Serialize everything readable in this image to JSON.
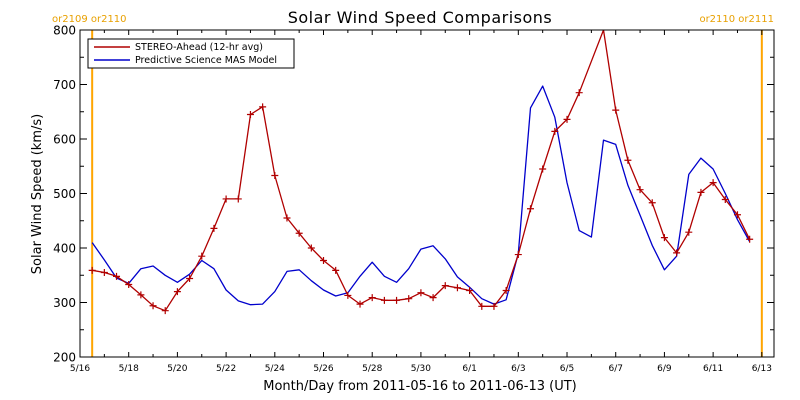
{
  "chart_data": {
    "type": "line",
    "title": "Solar Wind Speed Comparisons",
    "xlabel": "Month/Day from 2011-05-16 to 2011-06-13 (UT)",
    "ylabel": "Solar Wind Speed (km/s)",
    "ylim": [
      200,
      800
    ],
    "xlim": [
      "2011-05-16",
      "2011-06-13 12:00"
    ],
    "grid": false,
    "legend_position": "top-left",
    "x_tick_labels": [
      "5/16",
      "5/18",
      "5/20",
      "5/22",
      "5/24",
      "5/26",
      "5/28",
      "5/30",
      "6/1",
      "6/3",
      "6/5",
      "6/7",
      "6/9",
      "6/11",
      "6/13"
    ],
    "y_tick_labels": [
      "200",
      "300",
      "400",
      "500",
      "600",
      "700",
      "800"
    ],
    "annotations": {
      "left_top": "or2109 or2110",
      "right_top": "or2110 or2111"
    },
    "annotation_color": "#ffa500",
    "vertical_markers": [
      "2011-05-16 12:00",
      "2011-06-13"
    ],
    "series": [
      {
        "name": "STEREO-Ahead (12-hr avg)",
        "color": "#b00000",
        "marker": "+",
        "points": [
          [
            "2011-05-16 12:00",
            359
          ],
          [
            "2011-05-17 00:00",
            355
          ],
          [
            "2011-05-17 12:00",
            348
          ],
          [
            "2011-05-18 00:00",
            333
          ],
          [
            "2011-05-18 12:00",
            314
          ],
          [
            "2011-05-19 00:00",
            294
          ],
          [
            "2011-05-19 12:00",
            285
          ],
          [
            "2011-05-20 00:00",
            320
          ],
          [
            "2011-05-20 12:00",
            344
          ],
          [
            "2011-05-21 00:00",
            385
          ],
          [
            "2011-05-21 12:00",
            436
          ],
          [
            "2011-05-22 00:00",
            490
          ],
          [
            "2011-05-22 12:00",
            490
          ],
          [
            "2011-05-23 00:00",
            645
          ],
          [
            "2011-05-23 12:00",
            659
          ],
          [
            "2011-05-24 00:00",
            533
          ],
          [
            "2011-05-24 12:00",
            455
          ],
          [
            "2011-05-25 00:00",
            427
          ],
          [
            "2011-05-25 12:00",
            400
          ],
          [
            "2011-05-26 00:00",
            377
          ],
          [
            "2011-05-26 12:00",
            359
          ],
          [
            "2011-05-27 00:00",
            313
          ],
          [
            "2011-05-27 12:00",
            297
          ],
          [
            "2011-05-28 00:00",
            309
          ],
          [
            "2011-05-28 12:00",
            304
          ],
          [
            "2011-05-29 00:00",
            304
          ],
          [
            "2011-05-29 12:00",
            307
          ],
          [
            "2011-05-30 00:00",
            318
          ],
          [
            "2011-05-30 12:00",
            309
          ],
          [
            "2011-05-31 00:00",
            331
          ],
          [
            "2011-05-31 12:00",
            327
          ],
          [
            "2011-06-01 00:00",
            322
          ],
          [
            "2011-06-01 12:00",
            293
          ],
          [
            "2011-06-02 00:00",
            293
          ],
          [
            "2011-06-02 12:00",
            322
          ],
          [
            "2011-06-03 00:00",
            388
          ],
          [
            "2011-06-03 12:00",
            472
          ],
          [
            "2011-06-04 00:00",
            545
          ],
          [
            "2011-06-04 12:00",
            614
          ],
          [
            "2011-06-05 00:00",
            636
          ],
          [
            "2011-06-05 12:00",
            685
          ],
          [
            "2011-06-06 12:00",
            800
          ],
          [
            "2011-06-07 00:00",
            653
          ],
          [
            "2011-06-07 12:00",
            561
          ],
          [
            "2011-06-08 00:00",
            507
          ],
          [
            "2011-06-08 12:00",
            483
          ],
          [
            "2011-06-09 00:00",
            419
          ],
          [
            "2011-06-09 12:00",
            391
          ],
          [
            "2011-06-10 00:00",
            429
          ],
          [
            "2011-06-10 12:00",
            502
          ],
          [
            "2011-06-11 00:00",
            520
          ],
          [
            "2011-06-11 12:00",
            489
          ],
          [
            "2011-06-12 00:00",
            461
          ],
          [
            "2011-06-12 12:00",
            416
          ]
        ]
      },
      {
        "name": "Predictive Science MAS Model",
        "color": "#0000cc",
        "marker": "none",
        "points": [
          [
            "2011-05-16 12:00",
            410
          ],
          [
            "2011-05-17 00:00",
            378
          ],
          [
            "2011-05-17 12:00",
            345
          ],
          [
            "2011-05-18 00:00",
            335
          ],
          [
            "2011-05-18 12:00",
            362
          ],
          [
            "2011-05-19 00:00",
            367
          ],
          [
            "2011-05-19 12:00",
            350
          ],
          [
            "2011-05-20 00:00",
            337
          ],
          [
            "2011-05-20 12:00",
            352
          ],
          [
            "2011-05-21 00:00",
            377
          ],
          [
            "2011-05-21 12:00",
            362
          ],
          [
            "2011-05-22 00:00",
            323
          ],
          [
            "2011-05-22 12:00",
            303
          ],
          [
            "2011-05-23 00:00",
            296
          ],
          [
            "2011-05-23 12:00",
            297
          ],
          [
            "2011-05-24 00:00",
            320
          ],
          [
            "2011-05-24 12:00",
            357
          ],
          [
            "2011-05-25 00:00",
            360
          ],
          [
            "2011-05-25 12:00",
            340
          ],
          [
            "2011-05-26 00:00",
            323
          ],
          [
            "2011-05-26 12:00",
            312
          ],
          [
            "2011-05-27 00:00",
            318
          ],
          [
            "2011-05-27 12:00",
            348
          ],
          [
            "2011-05-28 00:00",
            374
          ],
          [
            "2011-05-28 12:00",
            348
          ],
          [
            "2011-05-29 00:00",
            337
          ],
          [
            "2011-05-29 12:00",
            362
          ],
          [
            "2011-05-30 00:00",
            398
          ],
          [
            "2011-05-30 12:00",
            404
          ],
          [
            "2011-05-31 00:00",
            380
          ],
          [
            "2011-05-31 12:00",
            347
          ],
          [
            "2011-06-01 00:00",
            328
          ],
          [
            "2011-06-01 12:00",
            307
          ],
          [
            "2011-06-02 00:00",
            297
          ],
          [
            "2011-06-02 12:00",
            305
          ],
          [
            "2011-06-03 00:00",
            390
          ],
          [
            "2011-06-03 12:00",
            657
          ],
          [
            "2011-06-04 00:00",
            697
          ],
          [
            "2011-06-04 12:00",
            640
          ],
          [
            "2011-06-05 00:00",
            520
          ],
          [
            "2011-06-05 12:00",
            432
          ],
          [
            "2011-06-06 00:00",
            420
          ],
          [
            "2011-06-06 12:00",
            598
          ],
          [
            "2011-06-07 00:00",
            590
          ],
          [
            "2011-06-07 12:00",
            515
          ],
          [
            "2011-06-08 00:00",
            460
          ],
          [
            "2011-06-08 12:00",
            405
          ],
          [
            "2011-06-09 00:00",
            360
          ],
          [
            "2011-06-09 12:00",
            385
          ],
          [
            "2011-06-10 00:00",
            535
          ],
          [
            "2011-06-10 12:00",
            565
          ],
          [
            "2011-06-11 00:00",
            545
          ],
          [
            "2011-06-11 12:00",
            500
          ],
          [
            "2011-06-12 00:00",
            452
          ],
          [
            "2011-06-12 12:00",
            412
          ]
        ]
      }
    ]
  }
}
